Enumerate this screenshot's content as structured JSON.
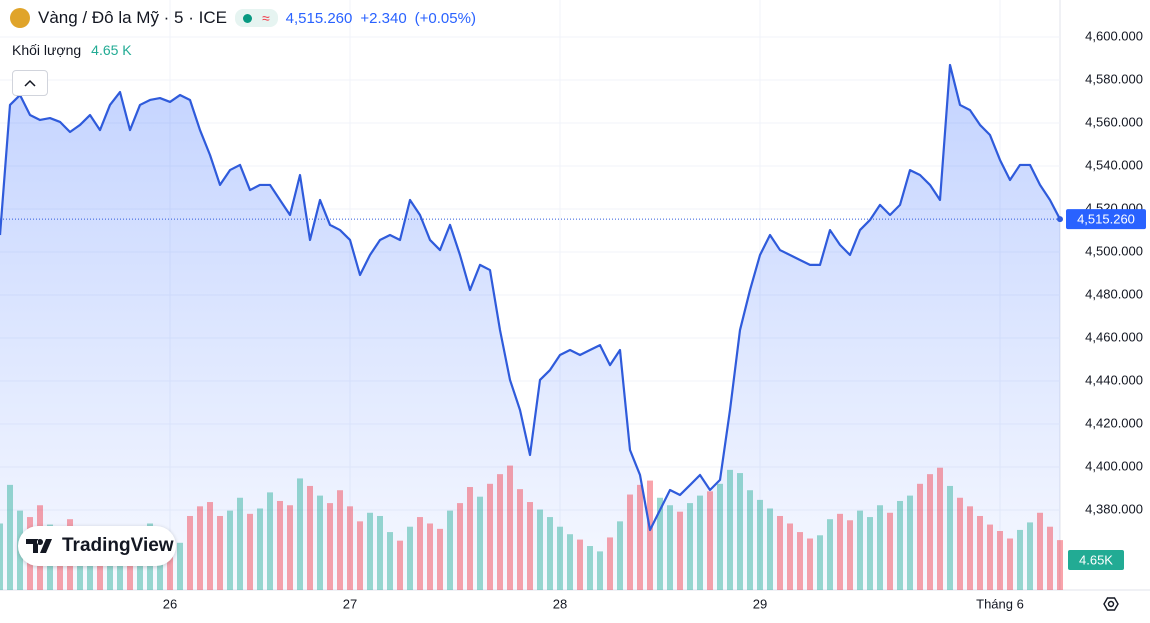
{
  "header": {
    "symbol": "Vàng / Đô la Mỹ · 5 · ICE",
    "price": "4,515.260",
    "change": "+2.340",
    "change_pct": "(+0.05%)",
    "volume_label": "Khối lượng",
    "volume_value": "4.65 K"
  },
  "watermark": "TradingView",
  "chart_data": {
    "type": "line",
    "categories": [
      null,
      null,
      null,
      null,
      null,
      null,
      null,
      null,
      null,
      null,
      null,
      null,
      null,
      null,
      null,
      null,
      null,
      "26",
      null,
      null,
      null,
      null,
      null,
      null,
      null,
      null,
      null,
      null,
      null,
      null,
      null,
      null,
      null,
      null,
      null,
      "27",
      null,
      null,
      null,
      null,
      null,
      null,
      null,
      null,
      null,
      null,
      null,
      null,
      null,
      null,
      null,
      null,
      null,
      null,
      null,
      null,
      "28",
      null,
      null,
      null,
      null,
      null,
      null,
      null,
      null,
      null,
      null,
      null,
      null,
      null,
      null,
      null,
      null,
      null,
      null,
      null,
      "29",
      null,
      null,
      null,
      null,
      null,
      null,
      null,
      null,
      null,
      null,
      null,
      null,
      null,
      null,
      null,
      null,
      null,
      null,
      null,
      null,
      null,
      null,
      null,
      "Tháng 6",
      null,
      null,
      null,
      null,
      null,
      null
    ],
    "series": [
      {
        "color": "#2f5bdb",
        "area_color": "#2962ff",
        "values": [
          4507.9,
          4568.4,
          4573.0,
          4563.7,
          4561.4,
          4562.3,
          4560.5,
          4555.8,
          4559.1,
          4563.7,
          4556.7,
          4568.4,
          4574.4,
          4556.7,
          4568.4,
          4570.7,
          4571.6,
          4569.8,
          4573.0,
          4570.7,
          4556.7,
          4545.1,
          4531.2,
          4538.1,
          4540.5,
          4528.8,
          4531.2,
          4531.2,
          4524.2,
          4517.2,
          4535.8,
          4505.6,
          4524.2,
          4512.6,
          4510.2,
          4505.6,
          4489.3,
          4498.6,
          4505.6,
          4507.9,
          4505.6,
          4524.2,
          4517.2,
          4505.6,
          4500.9,
          4512.6,
          4498.6,
          4482.3,
          4494.0,
          4491.6,
          4463.7,
          4440.5,
          4426.5,
          4405.6,
          4440.5,
          4445.1,
          4452.1,
          4454.4,
          4452.1,
          4454.4,
          4456.7,
          4447.4,
          4454.4,
          4407.9,
          4396.3,
          4370.7,
          4380.0,
          4389.3,
          4387.0,
          4391.6,
          4396.3,
          4389.3,
          4394.0,
          4426.5,
          4463.7,
          4482.3,
          4498.6,
          4507.9,
          4500.9,
          4498.6,
          4496.3,
          4494.0,
          4494.0,
          4510.2,
          4503.3,
          4498.6,
          4510.2,
          4514.9,
          4521.9,
          4517.2,
          4521.9,
          4538.1,
          4535.8,
          4531.2,
          4524.2,
          4587.0,
          4568.4,
          4566.0,
          4559.1,
          4554.4,
          4542.8,
          4533.5,
          4540.5,
          4540.5,
          4531.2,
          4524.2,
          4515.26
        ]
      },
      {
        "type": "bar",
        "axis": "y2",
        "up_color": "#22ab94",
        "down_color": "#f23645",
        "values": [
          6200,
          9800,
          7400,
          6800,
          7900,
          6100,
          5800,
          6600,
          5200,
          4800,
          4300,
          3900,
          4500,
          5100,
          5600,
          6200,
          4700,
          3800,
          4400,
          6900,
          7800,
          8200,
          6900,
          7400,
          8600,
          7100,
          7600,
          9100,
          8300,
          7900,
          10400,
          9700,
          8800,
          8100,
          9300,
          7800,
          6400,
          7200,
          6900,
          5400,
          4600,
          5900,
          6800,
          6200,
          5700,
          7400,
          8100,
          9600,
          8700,
          9900,
          10800,
          11600,
          9400,
          8200,
          7500,
          6800,
          5900,
          5200,
          4700,
          4100,
          3600,
          4900,
          6400,
          8900,
          9800,
          10200,
          8600,
          7900,
          7300,
          8100,
          8800,
          9200,
          9900,
          11200,
          10900,
          9300,
          8400,
          7600,
          6900,
          6200,
          5400,
          4800,
          5100,
          6600,
          7100,
          6500,
          7400,
          6800,
          7900,
          7200,
          8300,
          8800,
          9900,
          10800,
          11400,
          9700,
          8600,
          7800,
          6900,
          6100,
          5500,
          4800,
          5600,
          6300,
          7200,
          5900,
          4650
        ],
        "axis_label": "4.65K"
      }
    ],
    "ylim": [
      4342.8,
      4617.2
    ],
    "yticks": [
      {
        "value": 4380,
        "label": "4,380.000"
      },
      {
        "value": 4400,
        "label": "4,400.000"
      },
      {
        "value": 4420,
        "label": "4,420.000"
      },
      {
        "value": 4440,
        "label": "4,440.000"
      },
      {
        "value": 4460,
        "label": "4,460.000"
      },
      {
        "value": 4480,
        "label": "4,480.000"
      },
      {
        "value": 4500,
        "label": "4,500.000"
      },
      {
        "value": 4520,
        "label": "4,520.000"
      },
      {
        "value": 4540,
        "label": "4,540.000"
      },
      {
        "value": 4560,
        "label": "4,560.000"
      },
      {
        "value": 4580,
        "label": "4,580.000"
      },
      {
        "value": 4600,
        "label": "4,600.000"
      }
    ],
    "y2lim": [
      0,
      55000
    ],
    "grid": true
  }
}
